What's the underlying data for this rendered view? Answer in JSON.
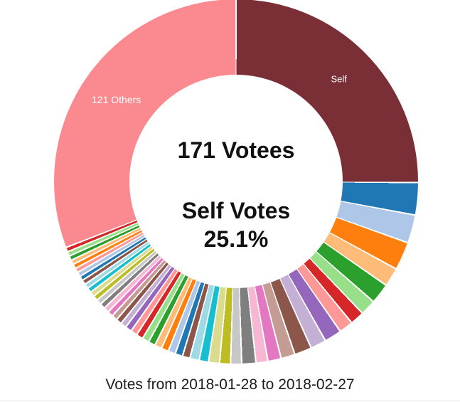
{
  "chart_data": {
    "type": "pie",
    "style": "donut",
    "legend": "none",
    "grid": false,
    "title": "",
    "center_text": {
      "line1": "171 Votees",
      "line2": "Self Votes",
      "line3": "25.1%"
    },
    "caption": "Votes from 2018-01-28 to 2018-02-27",
    "total_votees": 171,
    "self_vote_share_pct": 25.1,
    "others_aggregated_count": 121,
    "slice_gap_color": "#ffffff",
    "slices": [
      {
        "label": "Self",
        "pct": 25.1,
        "color": "#7a2e36",
        "text_color": "#ffffff",
        "label_size": 13
      },
      {
        "label": "",
        "pct": 2.86,
        "color": "#1f77b4"
      },
      {
        "label": "",
        "pct": 2.5,
        "color": "#aec7e8"
      },
      {
        "label": "",
        "pct": 2.5,
        "color": "#ff7f0e"
      },
      {
        "label": "",
        "pct": 1.67,
        "color": "#ffbb78"
      },
      {
        "label": "",
        "pct": 1.81,
        "color": "#2ca02c"
      },
      {
        "label": "",
        "pct": 1.39,
        "color": "#98df8a"
      },
      {
        "label": "",
        "pct": 1.25,
        "color": "#d62728"
      },
      {
        "label": "",
        "pct": 1.25,
        "color": "#ff9896"
      },
      {
        "label": "",
        "pct": 1.53,
        "color": "#9467bd"
      },
      {
        "label": "",
        "pct": 1.39,
        "color": "#c5b0d5"
      },
      {
        "label": "",
        "pct": 1.53,
        "color": "#8c564b"
      },
      {
        "label": "",
        "pct": 1.25,
        "color": "#c49c94"
      },
      {
        "label": "",
        "pct": 1.17,
        "color": "#e377c2"
      },
      {
        "label": "",
        "pct": 1.06,
        "color": "#f7b6d2"
      },
      {
        "label": "",
        "pct": 1.25,
        "color": "#7f7f7f"
      },
      {
        "label": "",
        "pct": 0.97,
        "color": "#c7c7c7"
      },
      {
        "label": "",
        "pct": 0.97,
        "color": "#bcbd22"
      },
      {
        "label": "",
        "pct": 0.97,
        "color": "#dbdb8d"
      },
      {
        "label": "",
        "pct": 0.83,
        "color": "#17becf"
      },
      {
        "label": "",
        "pct": 0.83,
        "color": "#9edae5"
      },
      {
        "label": "",
        "pct": 0.67,
        "color": "#8c564b"
      },
      {
        "label": "",
        "pct": 0.66,
        "color": "#1f77b4"
      },
      {
        "label": "",
        "pct": 0.65,
        "color": "#aec7e8"
      },
      {
        "label": "",
        "pct": 0.64,
        "color": "#ff7f0e"
      },
      {
        "label": "",
        "pct": 0.63,
        "color": "#ffbb78"
      },
      {
        "label": "",
        "pct": 0.62,
        "color": "#2ca02c"
      },
      {
        "label": "",
        "pct": 0.61,
        "color": "#98df8a"
      },
      {
        "label": "",
        "pct": 0.6,
        "color": "#d62728"
      },
      {
        "label": "",
        "pct": 0.59,
        "color": "#ff9896"
      },
      {
        "label": "",
        "pct": 0.58,
        "color": "#9467bd"
      },
      {
        "label": "",
        "pct": 0.52,
        "color": "#c5b0d5"
      },
      {
        "label": "",
        "pct": 0.51,
        "color": "#8c564b"
      },
      {
        "label": "",
        "pct": 0.5,
        "color": "#c49c94"
      },
      {
        "label": "",
        "pct": 0.49,
        "color": "#e377c2"
      },
      {
        "label": "",
        "pct": 0.48,
        "color": "#f7b6d2"
      },
      {
        "label": "",
        "pct": 0.47,
        "color": "#7f7f7f"
      },
      {
        "label": "",
        "pct": 0.46,
        "color": "#c7c7c7"
      },
      {
        "label": "",
        "pct": 0.45,
        "color": "#bcbd22"
      },
      {
        "label": "",
        "pct": 0.44,
        "color": "#dbdb8d"
      },
      {
        "label": "",
        "pct": 0.43,
        "color": "#17becf"
      },
      {
        "label": "",
        "pct": 0.42,
        "color": "#9edae5"
      },
      {
        "label": "",
        "pct": 0.41,
        "color": "#8c564b"
      },
      {
        "label": "",
        "pct": 0.4,
        "color": "#1f77b4"
      },
      {
        "label": "",
        "pct": 0.4,
        "color": "#aec7e8"
      },
      {
        "label": "",
        "pct": 0.4,
        "color": "#ff9896"
      },
      {
        "label": "",
        "pct": 0.4,
        "color": "#ff7f0e"
      },
      {
        "label": "",
        "pct": 0.4,
        "color": "#ffbb78"
      },
      {
        "label": "",
        "pct": 0.4,
        "color": "#2ca02c"
      },
      {
        "label": "",
        "pct": 0.4,
        "color": "#98df8a"
      },
      {
        "label": "",
        "pct": 0.4,
        "color": "#d62728"
      },
      {
        "label": "121 Others",
        "pct": 30.9,
        "color": "#fa8a90",
        "text_color": "#ffffff",
        "label_size": 14
      }
    ]
  }
}
